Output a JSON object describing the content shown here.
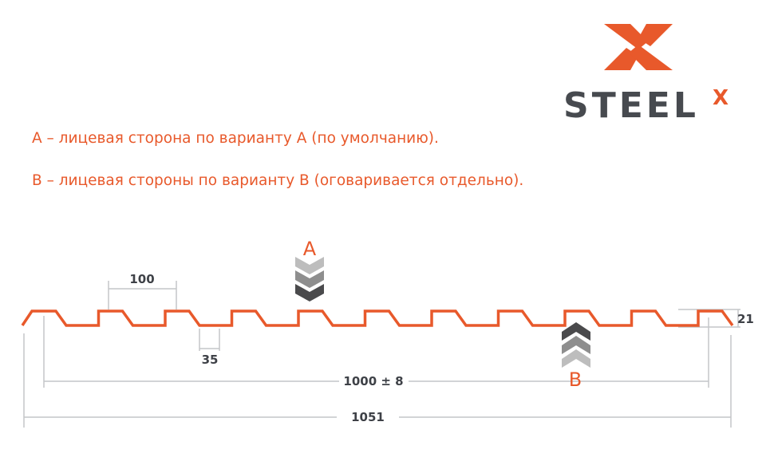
{
  "logo": {
    "text": "STEEL",
    "superscript": "X",
    "brand_color": "#e8592b",
    "text_color": "#474a4f"
  },
  "notes": [
    "А – лицевая сторона по варианту А (по умолчанию).",
    "В – лицевая стороны по варианту В (оговаривается отдельно)."
  ],
  "diagram": {
    "profile_color": "#e8592b",
    "dimensions": {
      "pitch": "100",
      "bottom_width": "35",
      "height": "21",
      "useful_width": "1000 ± 8",
      "total_width": "1051"
    },
    "side_a_label": "A",
    "side_b_label": "B"
  }
}
